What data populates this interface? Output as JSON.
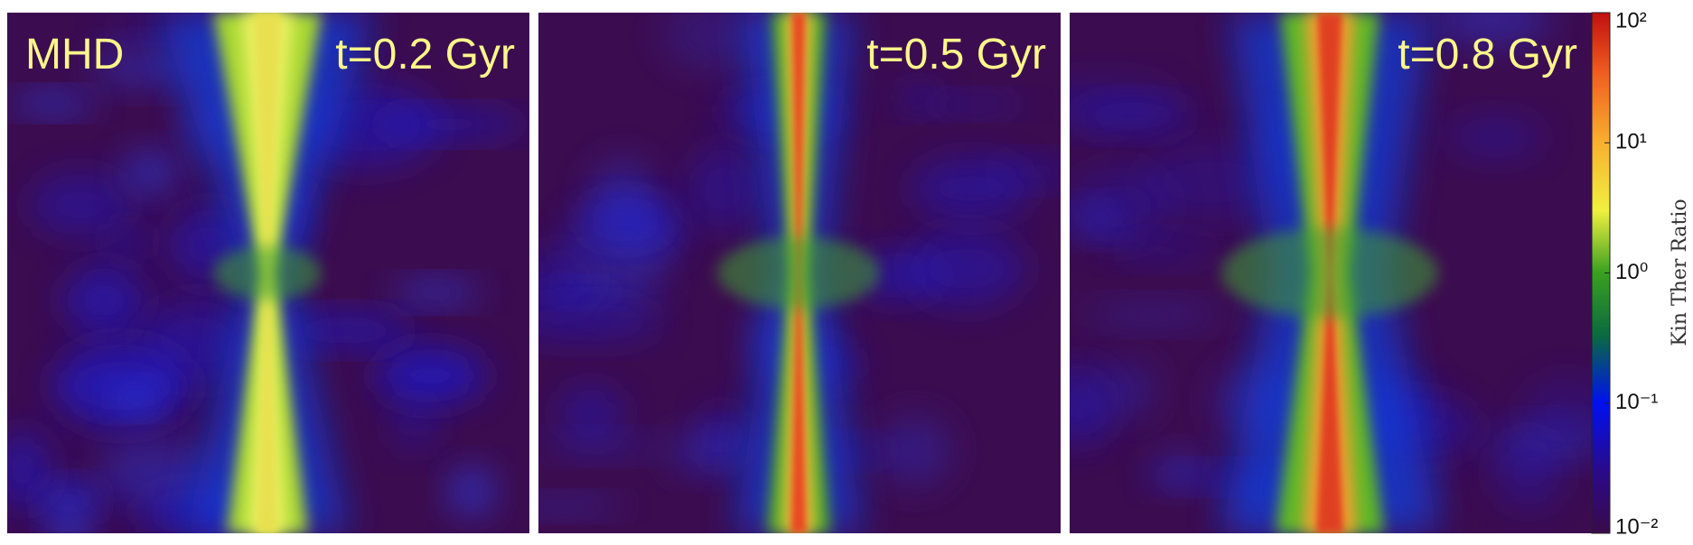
{
  "panels": [
    {
      "label": "MHD",
      "time": "t=0.2 Gyr"
    },
    {
      "time": "t=0.5 Gyr"
    },
    {
      "time": "t=0.8 Gyr"
    }
  ],
  "colorbar": {
    "label": "Kin Ther Ratio",
    "scale": "log",
    "lim": [
      0.01,
      100
    ],
    "ticks": [
      {
        "value": 100,
        "label": "10²"
      },
      {
        "value": 10,
        "label": "10¹"
      },
      {
        "value": 1,
        "label": "10⁰"
      },
      {
        "value": 0.1,
        "label": "10⁻¹"
      },
      {
        "value": 0.01,
        "label": "10⁻²"
      }
    ]
  }
}
